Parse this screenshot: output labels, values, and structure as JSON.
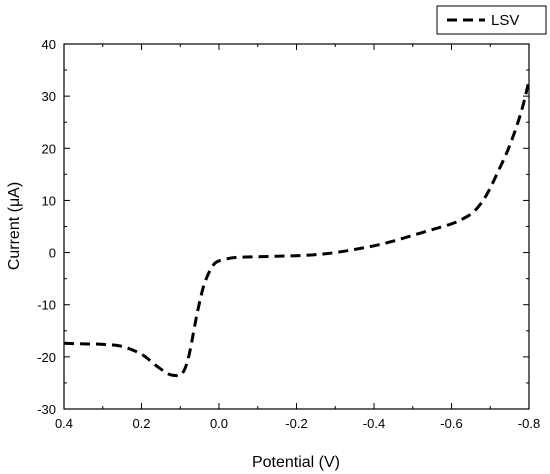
{
  "chart_data": {
    "type": "line",
    "title": "",
    "xlabel": "Potential (V)",
    "ylabel": "Current (μA)",
    "xlim": [
      0.4,
      -0.8
    ],
    "ylim": [
      -30,
      40
    ],
    "x_reversed": true,
    "grid": false,
    "legend": {
      "placement": "top-right",
      "entries": [
        "LSV"
      ]
    },
    "x_ticks": [
      0.4,
      0.2,
      0.0,
      -0.2,
      -0.4,
      -0.6,
      -0.8
    ],
    "x_tick_labels": [
      "0.4",
      "0.2",
      "0.0",
      "-0.2",
      "-0.4",
      "-0.6",
      "-0.8"
    ],
    "y_ticks": [
      -30,
      -20,
      -10,
      0,
      10,
      20,
      30,
      40
    ],
    "y_tick_labels": [
      "-30",
      "-20",
      "-10",
      "0",
      "10",
      "20",
      "30",
      "40"
    ],
    "series": [
      {
        "name": "LSV",
        "style": "dashed",
        "color": "#000000",
        "x": [
          0.4,
          0.35,
          0.3,
          0.25,
          0.2,
          0.16,
          0.13,
          0.11,
          0.1,
          0.09,
          0.08,
          0.07,
          0.06,
          0.05,
          0.04,
          0.03,
          0.02,
          0.01,
          0.0,
          -0.02,
          -0.05,
          -0.1,
          -0.15,
          -0.2,
          -0.25,
          -0.3,
          -0.35,
          -0.4,
          -0.45,
          -0.5,
          -0.55,
          -0.6,
          -0.63,
          -0.66,
          -0.69,
          -0.72,
          -0.75,
          -0.78,
          -0.8
        ],
        "y": [
          -17.4,
          -17.5,
          -17.6,
          -18.0,
          -19.5,
          -21.8,
          -23.3,
          -23.6,
          -23.5,
          -22.6,
          -20.5,
          -17.0,
          -13.0,
          -9.5,
          -6.5,
          -4.5,
          -3.0,
          -2.0,
          -1.6,
          -1.2,
          -0.9,
          -0.8,
          -0.7,
          -0.6,
          -0.4,
          0.0,
          0.6,
          1.3,
          2.2,
          3.3,
          4.4,
          5.5,
          6.5,
          8.0,
          11.0,
          15.5,
          20.5,
          27.0,
          33.0
        ]
      }
    ]
  }
}
